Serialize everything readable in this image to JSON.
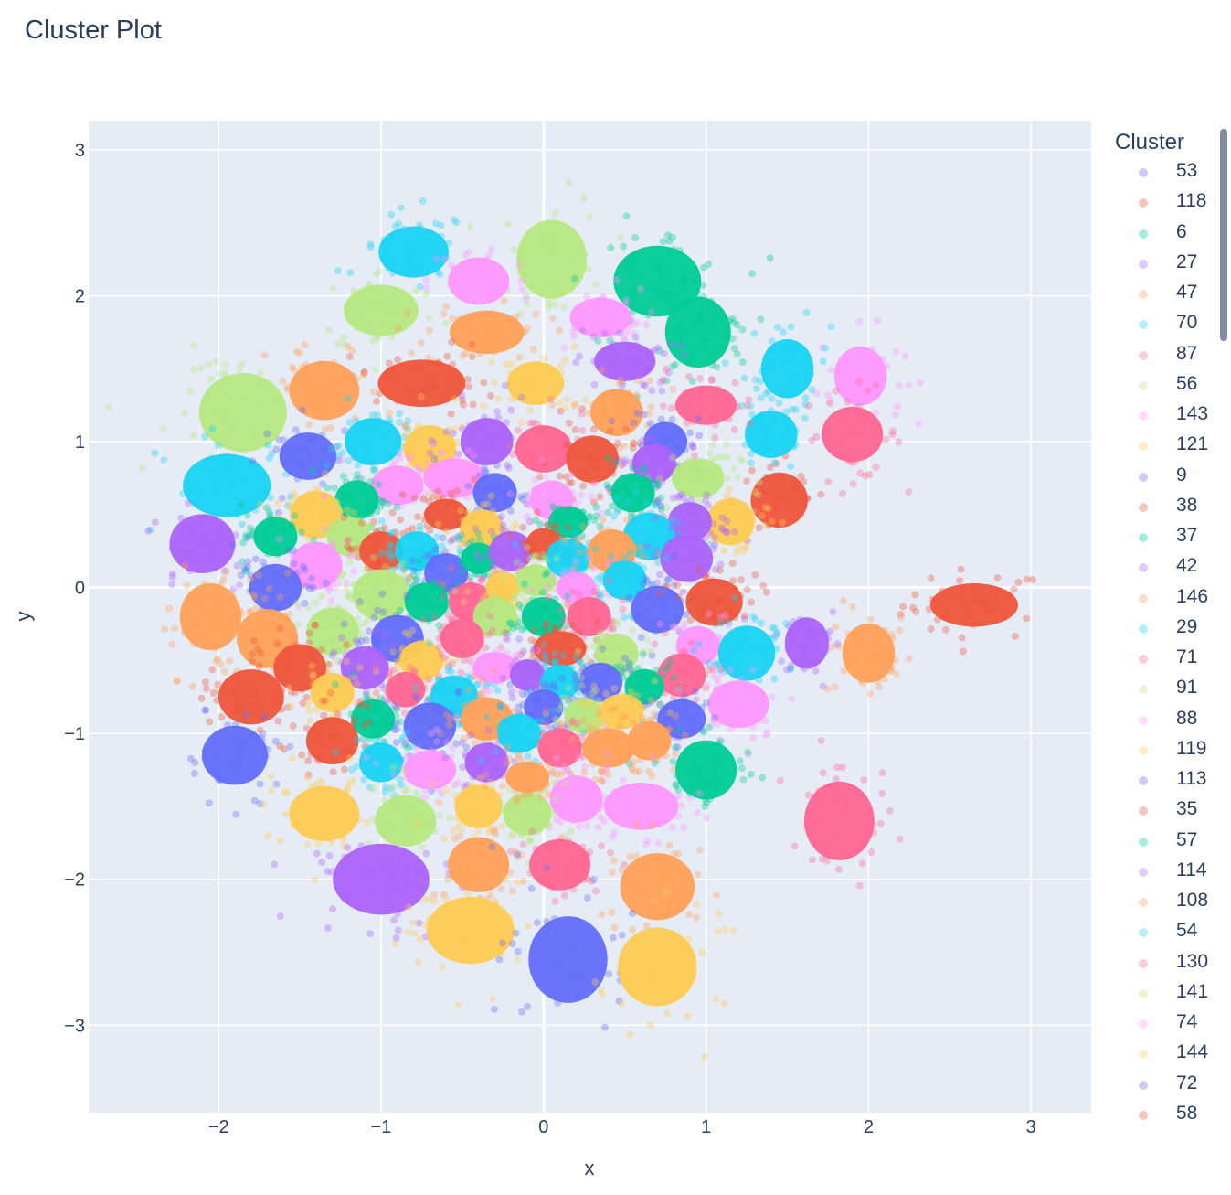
{
  "chart_data": {
    "type": "scatter",
    "title": "Cluster Plot",
    "xlabel": "x",
    "ylabel": "y",
    "xlim": [
      -2.8,
      3.37
    ],
    "ylim": [
      -3.6,
      3.2
    ],
    "xticks": [
      -2,
      -1,
      0,
      1,
      2,
      3
    ],
    "xtick_labels": [
      "−2",
      "−1",
      "0",
      "1",
      "2",
      "3"
    ],
    "yticks": [
      -3,
      -2,
      -1,
      0,
      1,
      2,
      3
    ],
    "ytick_labels": [
      "−3",
      "−2",
      "−1",
      "0",
      "1",
      "2",
      "3"
    ],
    "grid": true,
    "background": "#e5ecf6",
    "marker_opacity": 0.35,
    "legend_title": "Cluster",
    "legend_position": "right",
    "legend": [
      {
        "name": "53",
        "color": "#636efa"
      },
      {
        "name": "118",
        "color": "#EF553B"
      },
      {
        "name": "6",
        "color": "#00cc96"
      },
      {
        "name": "27",
        "color": "#ab63fa"
      },
      {
        "name": "47",
        "color": "#FFA15A"
      },
      {
        "name": "70",
        "color": "#19d3f3"
      },
      {
        "name": "87",
        "color": "#FF6692"
      },
      {
        "name": "56",
        "color": "#B6E880"
      },
      {
        "name": "143",
        "color": "#FF97FF"
      },
      {
        "name": "121",
        "color": "#FECB52"
      },
      {
        "name": "9",
        "color": "#636efa"
      },
      {
        "name": "38",
        "color": "#EF553B"
      },
      {
        "name": "37",
        "color": "#00cc96"
      },
      {
        "name": "42",
        "color": "#ab63fa"
      },
      {
        "name": "146",
        "color": "#FFA15A"
      },
      {
        "name": "29",
        "color": "#19d3f3"
      },
      {
        "name": "71",
        "color": "#FF6692"
      },
      {
        "name": "91",
        "color": "#B6E880"
      },
      {
        "name": "88",
        "color": "#FF97FF"
      },
      {
        "name": "119",
        "color": "#FECB52"
      },
      {
        "name": "113",
        "color": "#636efa"
      },
      {
        "name": "35",
        "color": "#EF553B"
      },
      {
        "name": "57",
        "color": "#00cc96"
      },
      {
        "name": "114",
        "color": "#ab63fa"
      },
      {
        "name": "108",
        "color": "#FFA15A"
      },
      {
        "name": "54",
        "color": "#19d3f3"
      },
      {
        "name": "130",
        "color": "#FF6692"
      },
      {
        "name": "141",
        "color": "#B6E880"
      },
      {
        "name": "74",
        "color": "#FF97FF"
      },
      {
        "name": "144",
        "color": "#FECB52"
      },
      {
        "name": "72",
        "color": "#636efa"
      },
      {
        "name": "58",
        "color": "#EF553B"
      }
    ],
    "clusters": [
      {
        "c": "#EF553B",
        "x": 2.65,
        "y": -0.12,
        "sx": 0.2,
        "sy": 0.11
      },
      {
        "c": "#FF6692",
        "x": 1.82,
        "y": -1.6,
        "sx": 0.16,
        "sy": 0.2
      },
      {
        "c": "#FFA15A",
        "x": 2.0,
        "y": -0.45,
        "sx": 0.12,
        "sy": 0.15
      },
      {
        "c": "#ab63fa",
        "x": 1.62,
        "y": -0.38,
        "sx": 0.1,
        "sy": 0.13
      },
      {
        "c": "#FF97FF",
        "x": 1.95,
        "y": 1.45,
        "sx": 0.12,
        "sy": 0.15
      },
      {
        "c": "#19d3f3",
        "x": 1.5,
        "y": 1.5,
        "sx": 0.12,
        "sy": 0.15
      },
      {
        "c": "#FF6692",
        "x": 1.9,
        "y": 1.05,
        "sx": 0.14,
        "sy": 0.14
      },
      {
        "c": "#EF553B",
        "x": 1.45,
        "y": 0.6,
        "sx": 0.13,
        "sy": 0.14
      },
      {
        "c": "#19d3f3",
        "x": 1.4,
        "y": 1.05,
        "sx": 0.12,
        "sy": 0.12
      },
      {
        "c": "#19d3f3",
        "x": -0.8,
        "y": 2.3,
        "sx": 0.16,
        "sy": 0.13
      },
      {
        "c": "#B6E880",
        "x": 0.05,
        "y": 2.25,
        "sx": 0.16,
        "sy": 0.2
      },
      {
        "c": "#00cc96",
        "x": 0.7,
        "y": 2.1,
        "sx": 0.2,
        "sy": 0.18
      },
      {
        "c": "#00cc96",
        "x": 0.95,
        "y": 1.75,
        "sx": 0.15,
        "sy": 0.18
      },
      {
        "c": "#FF97FF",
        "x": -0.4,
        "y": 2.1,
        "sx": 0.14,
        "sy": 0.12
      },
      {
        "c": "#B6E880",
        "x": -1.0,
        "y": 1.9,
        "sx": 0.17,
        "sy": 0.13
      },
      {
        "c": "#FFA15A",
        "x": -0.35,
        "y": 1.75,
        "sx": 0.17,
        "sy": 0.11
      },
      {
        "c": "#FF97FF",
        "x": 0.35,
        "y": 1.85,
        "sx": 0.14,
        "sy": 0.1
      },
      {
        "c": "#ab63fa",
        "x": 0.5,
        "y": 1.55,
        "sx": 0.14,
        "sy": 0.1
      },
      {
        "c": "#EF553B",
        "x": -0.75,
        "y": 1.4,
        "sx": 0.2,
        "sy": 0.12
      },
      {
        "c": "#FFA15A",
        "x": -1.35,
        "y": 1.35,
        "sx": 0.16,
        "sy": 0.15
      },
      {
        "c": "#FECB52",
        "x": -0.05,
        "y": 1.4,
        "sx": 0.13,
        "sy": 0.11
      },
      {
        "c": "#FFA15A",
        "x": 0.45,
        "y": 1.2,
        "sx": 0.12,
        "sy": 0.12
      },
      {
        "c": "#FF6692",
        "x": 1.0,
        "y": 1.25,
        "sx": 0.14,
        "sy": 0.1
      },
      {
        "c": "#B6E880",
        "x": -1.85,
        "y": 1.2,
        "sx": 0.2,
        "sy": 0.2
      },
      {
        "c": "#19d3f3",
        "x": -1.95,
        "y": 0.7,
        "sx": 0.2,
        "sy": 0.16
      },
      {
        "c": "#636efa",
        "x": -1.45,
        "y": 0.9,
        "sx": 0.13,
        "sy": 0.12
      },
      {
        "c": "#19d3f3",
        "x": -1.05,
        "y": 1.0,
        "sx": 0.13,
        "sy": 0.12
      },
      {
        "c": "#FECB52",
        "x": -0.7,
        "y": 0.95,
        "sx": 0.12,
        "sy": 0.12
      },
      {
        "c": "#ab63fa",
        "x": -0.35,
        "y": 1.0,
        "sx": 0.12,
        "sy": 0.12
      },
      {
        "c": "#FF6692",
        "x": 0.0,
        "y": 0.95,
        "sx": 0.13,
        "sy": 0.12
      },
      {
        "c": "#EF553B",
        "x": 0.3,
        "y": 0.88,
        "sx": 0.12,
        "sy": 0.12
      },
      {
        "c": "#636efa",
        "x": 0.75,
        "y": 1.0,
        "sx": 0.1,
        "sy": 0.1
      },
      {
        "c": "#ab63fa",
        "x": 0.68,
        "y": 0.85,
        "sx": 0.1,
        "sy": 0.1
      },
      {
        "c": "#B6E880",
        "x": 0.95,
        "y": 0.75,
        "sx": 0.12,
        "sy": 0.1
      },
      {
        "c": "#FF97FF",
        "x": -0.9,
        "y": 0.7,
        "sx": 0.12,
        "sy": 0.1
      },
      {
        "c": "#FF97FF",
        "x": -0.55,
        "y": 0.75,
        "sx": 0.14,
        "sy": 0.1
      },
      {
        "c": "#00cc96",
        "x": -1.15,
        "y": 0.6,
        "sx": 0.1,
        "sy": 0.1
      },
      {
        "c": "#FECB52",
        "x": -1.4,
        "y": 0.5,
        "sx": 0.12,
        "sy": 0.12
      },
      {
        "c": "#ab63fa",
        "x": -2.1,
        "y": 0.3,
        "sx": 0.15,
        "sy": 0.15
      },
      {
        "c": "#00cc96",
        "x": -1.65,
        "y": 0.35,
        "sx": 0.1,
        "sy": 0.1
      },
      {
        "c": "#636efa",
        "x": -0.3,
        "y": 0.65,
        "sx": 0.1,
        "sy": 0.1
      },
      {
        "c": "#FF97FF",
        "x": 0.05,
        "y": 0.6,
        "sx": 0.1,
        "sy": 0.1
      },
      {
        "c": "#00cc96",
        "x": 0.55,
        "y": 0.65,
        "sx": 0.1,
        "sy": 0.1
      },
      {
        "c": "#FECB52",
        "x": 1.15,
        "y": 0.45,
        "sx": 0.11,
        "sy": 0.12
      },
      {
        "c": "#EF553B",
        "x": -0.6,
        "y": 0.5,
        "sx": 0.1,
        "sy": 0.08
      },
      {
        "c": "#FECB52",
        "x": -0.38,
        "y": 0.4,
        "sx": 0.1,
        "sy": 0.1
      },
      {
        "c": "#ab63fa",
        "x": 0.9,
        "y": 0.45,
        "sx": 0.1,
        "sy": 0.1
      },
      {
        "c": "#19d3f3",
        "x": 0.65,
        "y": 0.35,
        "sx": 0.12,
        "sy": 0.12
      },
      {
        "c": "#00cc96",
        "x": 0.15,
        "y": 0.45,
        "sx": 0.09,
        "sy": 0.08
      },
      {
        "c": "#B6E880",
        "x": -1.2,
        "y": 0.35,
        "sx": 0.1,
        "sy": 0.1
      },
      {
        "c": "#FF97FF",
        "x": -1.4,
        "y": 0.15,
        "sx": 0.12,
        "sy": 0.12
      },
      {
        "c": "#EF553B",
        "x": -1.0,
        "y": 0.25,
        "sx": 0.1,
        "sy": 0.1
      },
      {
        "c": "#19d3f3",
        "x": -0.78,
        "y": 0.25,
        "sx": 0.1,
        "sy": 0.1
      },
      {
        "c": "#636efa",
        "x": -0.6,
        "y": 0.1,
        "sx": 0.1,
        "sy": 0.1
      },
      {
        "c": "#00cc96",
        "x": -0.4,
        "y": 0.2,
        "sx": 0.08,
        "sy": 0.08
      },
      {
        "c": "#ab63fa",
        "x": -0.2,
        "y": 0.25,
        "sx": 0.1,
        "sy": 0.1
      },
      {
        "c": "#EF553B",
        "x": 0.0,
        "y": 0.3,
        "sx": 0.08,
        "sy": 0.08
      },
      {
        "c": "#19d3f3",
        "x": 0.15,
        "y": 0.2,
        "sx": 0.1,
        "sy": 0.1
      },
      {
        "c": "#FFA15A",
        "x": 0.42,
        "y": 0.25,
        "sx": 0.11,
        "sy": 0.11
      },
      {
        "c": "#ab63fa",
        "x": 0.88,
        "y": 0.2,
        "sx": 0.12,
        "sy": 0.12
      },
      {
        "c": "#636efa",
        "x": -1.65,
        "y": 0.0,
        "sx": 0.12,
        "sy": 0.12
      },
      {
        "c": "#FFA15A",
        "x": -2.05,
        "y": -0.2,
        "sx": 0.14,
        "sy": 0.17
      },
      {
        "c": "#FFA15A",
        "x": -1.7,
        "y": -0.35,
        "sx": 0.14,
        "sy": 0.15
      },
      {
        "c": "#B6E880",
        "x": -1.0,
        "y": -0.05,
        "sx": 0.13,
        "sy": 0.13
      },
      {
        "c": "#00cc96",
        "x": -0.72,
        "y": -0.1,
        "sx": 0.1,
        "sy": 0.1
      },
      {
        "c": "#FF6692",
        "x": -0.45,
        "y": -0.1,
        "sx": 0.1,
        "sy": 0.1
      },
      {
        "c": "#FECB52",
        "x": -0.25,
        "y": 0.0,
        "sx": 0.08,
        "sy": 0.08
      },
      {
        "c": "#B6E880",
        "x": -0.05,
        "y": 0.05,
        "sx": 0.09,
        "sy": 0.08
      },
      {
        "c": "#FF97FF",
        "x": 0.2,
        "y": 0.0,
        "sx": 0.09,
        "sy": 0.08
      },
      {
        "c": "#19d3f3",
        "x": 0.5,
        "y": 0.05,
        "sx": 0.1,
        "sy": 0.1
      },
      {
        "c": "#636efa",
        "x": 0.7,
        "y": -0.15,
        "sx": 0.12,
        "sy": 0.12
      },
      {
        "c": "#EF553B",
        "x": 1.05,
        "y": -0.1,
        "sx": 0.13,
        "sy": 0.12
      },
      {
        "c": "#B6E880",
        "x": -1.3,
        "y": -0.3,
        "sx": 0.12,
        "sy": 0.12
      },
      {
        "c": "#636efa",
        "x": -0.9,
        "y": -0.35,
        "sx": 0.12,
        "sy": 0.12
      },
      {
        "c": "#B6E880",
        "x": -0.3,
        "y": -0.2,
        "sx": 0.1,
        "sy": 0.1
      },
      {
        "c": "#00cc96",
        "x": 0.0,
        "y": -0.2,
        "sx": 0.1,
        "sy": 0.1
      },
      {
        "c": "#FF6692",
        "x": 0.28,
        "y": -0.2,
        "sx": 0.1,
        "sy": 0.1
      },
      {
        "c": "#FF97FF",
        "x": 0.95,
        "y": -0.4,
        "sx": 0.1,
        "sy": 0.1
      },
      {
        "c": "#19d3f3",
        "x": 1.25,
        "y": -0.45,
        "sx": 0.13,
        "sy": 0.14
      },
      {
        "c": "#EF553B",
        "x": -1.5,
        "y": -0.55,
        "sx": 0.12,
        "sy": 0.12
      },
      {
        "c": "#ab63fa",
        "x": -1.1,
        "y": -0.55,
        "sx": 0.11,
        "sy": 0.11
      },
      {
        "c": "#FECB52",
        "x": -0.75,
        "y": -0.5,
        "sx": 0.1,
        "sy": 0.1
      },
      {
        "c": "#FF6692",
        "x": -0.5,
        "y": -0.35,
        "sx": 0.1,
        "sy": 0.1
      },
      {
        "c": "#EF553B",
        "x": 0.1,
        "y": -0.42,
        "sx": 0.12,
        "sy": 0.09
      },
      {
        "c": "#B6E880",
        "x": 0.45,
        "y": -0.45,
        "sx": 0.1,
        "sy": 0.1
      },
      {
        "c": "#FF6692",
        "x": 0.85,
        "y": -0.6,
        "sx": 0.11,
        "sy": 0.11
      },
      {
        "c": "#EF553B",
        "x": -1.8,
        "y": -0.75,
        "sx": 0.15,
        "sy": 0.14
      },
      {
        "c": "#FECB52",
        "x": -1.3,
        "y": -0.72,
        "sx": 0.1,
        "sy": 0.1
      },
      {
        "c": "#FF6692",
        "x": -0.85,
        "y": -0.7,
        "sx": 0.09,
        "sy": 0.09
      },
      {
        "c": "#19d3f3",
        "x": -0.55,
        "y": -0.75,
        "sx": 0.11,
        "sy": 0.11
      },
      {
        "c": "#FF97FF",
        "x": -0.3,
        "y": -0.55,
        "sx": 0.1,
        "sy": 0.08
      },
      {
        "c": "#ab63fa",
        "x": -0.1,
        "y": -0.6,
        "sx": 0.08,
        "sy": 0.08
      },
      {
        "c": "#19d3f3",
        "x": 0.1,
        "y": -0.65,
        "sx": 0.09,
        "sy": 0.09
      },
      {
        "c": "#636efa",
        "x": 0.35,
        "y": -0.65,
        "sx": 0.1,
        "sy": 0.1
      },
      {
        "c": "#00cc96",
        "x": 0.62,
        "y": -0.68,
        "sx": 0.09,
        "sy": 0.09
      },
      {
        "c": "#FF97FF",
        "x": 1.2,
        "y": -0.8,
        "sx": 0.14,
        "sy": 0.12
      },
      {
        "c": "#636efa",
        "x": 0.85,
        "y": -0.9,
        "sx": 0.11,
        "sy": 0.1
      },
      {
        "c": "#00cc96",
        "x": -1.05,
        "y": -0.9,
        "sx": 0.1,
        "sy": 0.1
      },
      {
        "c": "#636efa",
        "x": -0.7,
        "y": -0.95,
        "sx": 0.12,
        "sy": 0.12
      },
      {
        "c": "#FFA15A",
        "x": -0.35,
        "y": -0.9,
        "sx": 0.12,
        "sy": 0.11
      },
      {
        "c": "#636efa",
        "x": 0.0,
        "y": -0.82,
        "sx": 0.09,
        "sy": 0.09
      },
      {
        "c": "#B6E880",
        "x": 0.25,
        "y": -0.88,
        "sx": 0.09,
        "sy": 0.09
      },
      {
        "c": "#FECB52",
        "x": 0.48,
        "y": -0.85,
        "sx": 0.1,
        "sy": 0.09
      },
      {
        "c": "#636efa",
        "x": -1.9,
        "y": -1.15,
        "sx": 0.15,
        "sy": 0.15
      },
      {
        "c": "#EF553B",
        "x": -1.3,
        "y": -1.05,
        "sx": 0.12,
        "sy": 0.12
      },
      {
        "c": "#19d3f3",
        "x": -1.0,
        "y": -1.2,
        "sx": 0.1,
        "sy": 0.1
      },
      {
        "c": "#FF97FF",
        "x": -0.7,
        "y": -1.25,
        "sx": 0.12,
        "sy": 0.1
      },
      {
        "c": "#ab63fa",
        "x": -0.35,
        "y": -1.2,
        "sx": 0.1,
        "sy": 0.1
      },
      {
        "c": "#19d3f3",
        "x": -0.15,
        "y": -1.0,
        "sx": 0.1,
        "sy": 0.1
      },
      {
        "c": "#FF6692",
        "x": 0.1,
        "y": -1.1,
        "sx": 0.1,
        "sy": 0.1
      },
      {
        "c": "#FFA15A",
        "x": 0.4,
        "y": -1.1,
        "sx": 0.12,
        "sy": 0.1
      },
      {
        "c": "#FFA15A",
        "x": 0.65,
        "y": -1.05,
        "sx": 0.1,
        "sy": 0.1
      },
      {
        "c": "#00cc96",
        "x": 1.0,
        "y": -1.25,
        "sx": 0.14,
        "sy": 0.15
      },
      {
        "c": "#FF97FF",
        "x": 0.6,
        "y": -1.5,
        "sx": 0.17,
        "sy": 0.12
      },
      {
        "c": "#FF97FF",
        "x": 0.2,
        "y": -1.45,
        "sx": 0.12,
        "sy": 0.12
      },
      {
        "c": "#FECB52",
        "x": -1.35,
        "y": -1.55,
        "sx": 0.16,
        "sy": 0.14
      },
      {
        "c": "#B6E880",
        "x": -0.85,
        "y": -1.6,
        "sx": 0.14,
        "sy": 0.13
      },
      {
        "c": "#FECB52",
        "x": -0.4,
        "y": -1.5,
        "sx": 0.11,
        "sy": 0.11
      },
      {
        "c": "#B6E880",
        "x": -0.1,
        "y": -1.55,
        "sx": 0.11,
        "sy": 0.11
      },
      {
        "c": "#FFA15A",
        "x": -0.1,
        "y": -1.3,
        "sx": 0.1,
        "sy": 0.08
      },
      {
        "c": "#ab63fa",
        "x": -1.0,
        "y": -2.0,
        "sx": 0.22,
        "sy": 0.18
      },
      {
        "c": "#FFA15A",
        "x": -0.4,
        "y": -1.9,
        "sx": 0.14,
        "sy": 0.14
      },
      {
        "c": "#FF6692",
        "x": 0.1,
        "y": -1.9,
        "sx": 0.14,
        "sy": 0.13
      },
      {
        "c": "#FFA15A",
        "x": 0.7,
        "y": -2.05,
        "sx": 0.17,
        "sy": 0.17
      },
      {
        "c": "#FECB52",
        "x": -0.45,
        "y": -2.35,
        "sx": 0.2,
        "sy": 0.17
      },
      {
        "c": "#636efa",
        "x": 0.15,
        "y": -2.55,
        "sx": 0.18,
        "sy": 0.22
      },
      {
        "c": "#FECB52",
        "x": 0.7,
        "y": -2.6,
        "sx": 0.18,
        "sy": 0.2
      }
    ]
  }
}
